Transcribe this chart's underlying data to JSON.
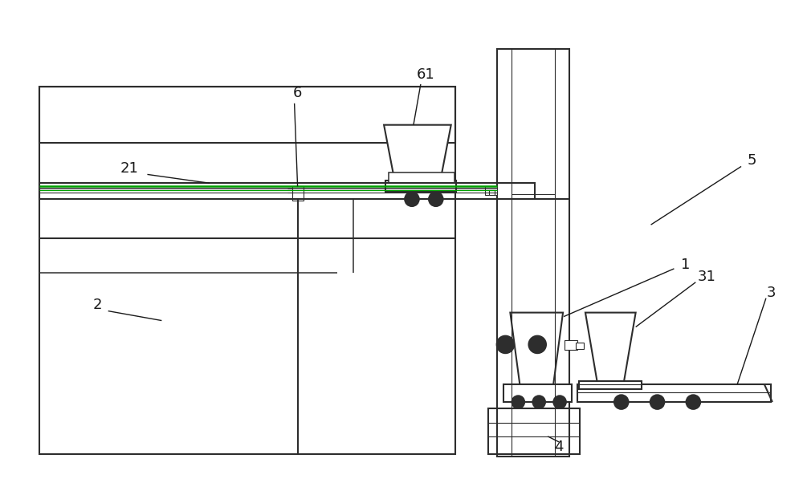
{
  "bg_color": "#ffffff",
  "line_color": "#2d2d2d",
  "green_line_color": "#00a000",
  "fig_width": 10.0,
  "fig_height": 6.07,
  "lw_main": 1.5,
  "lw_thin": 0.8,
  "lw_med": 1.1,
  "font_size": 13,
  "label_color": "#1a1a1a"
}
